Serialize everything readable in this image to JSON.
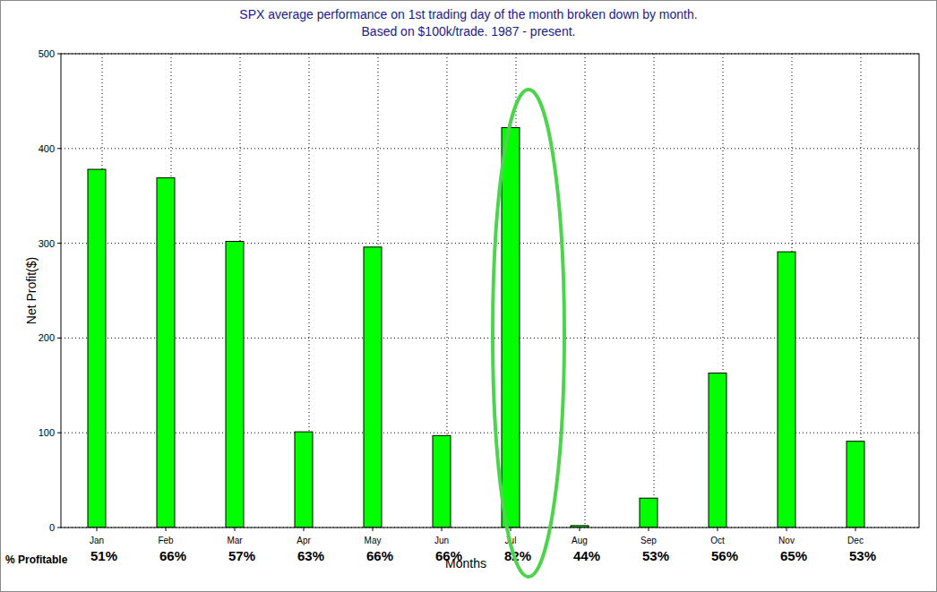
{
  "chart_data": {
    "type": "bar",
    "title": "SPX average performance on 1st trading day of the month broken down by month.",
    "subtitle": "Based on $100k/trade. 1987 - present.",
    "x_label": "Months",
    "y_label": "Net Profit($)",
    "categories": [
      "Jan",
      "Feb",
      "Mar",
      "Apr",
      "May",
      "Jun",
      "Jul",
      "Aug",
      "Sep",
      "Oct",
      "Nov",
      "Dec"
    ],
    "values": [
      378,
      369,
      302,
      101,
      296,
      97,
      422,
      2,
      31,
      163,
      291,
      91
    ],
    "color": "#00ff00",
    "ylim": [
      0,
      500
    ],
    "yticks": [
      0,
      100,
      200,
      300,
      400,
      500
    ],
    "grid": true,
    "percent_profitable_label": "% Profitable",
    "percent_profitable": [
      "51%",
      "66%",
      "57%",
      "63%",
      "66%",
      "66%",
      "82%",
      "44%",
      "53%",
      "56%",
      "65%",
      "53%"
    ]
  }
}
